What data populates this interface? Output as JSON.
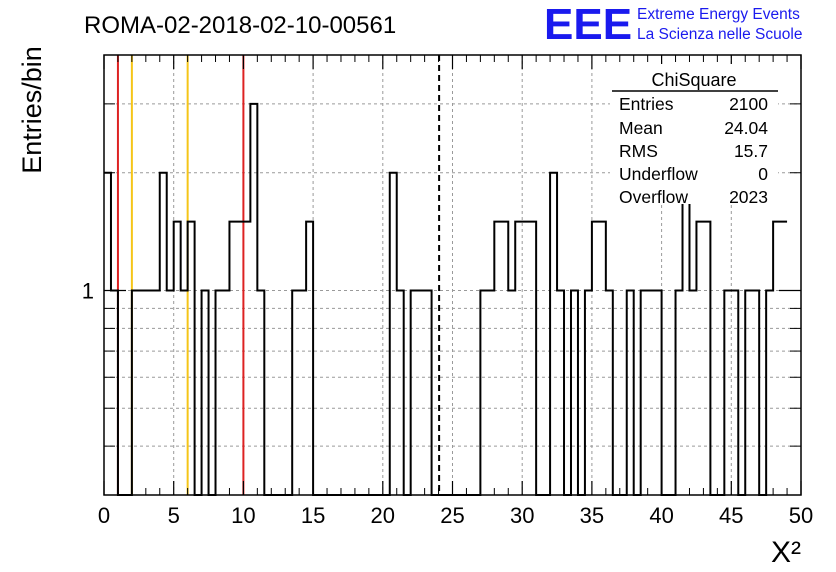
{
  "chart_data": {
    "type": "bar",
    "title": "ROMA-02-2018-02-10-00561",
    "xlabel": "X²",
    "ylabel": "Entries/bin",
    "xlim": [
      0,
      50
    ],
    "y_scale": "log",
    "ylim": [
      0.3,
      4.0
    ],
    "x_ticks": [
      "0",
      "5",
      "10",
      "15",
      "20",
      "25",
      "30",
      "35",
      "40",
      "45",
      "50"
    ],
    "y_ticks": [
      "1"
    ],
    "grid": true,
    "bin_width": 0.5,
    "values": [
      2,
      1,
      0,
      0,
      1,
      1,
      1,
      1,
      2,
      1,
      1.5,
      1,
      1.5,
      0,
      1,
      0,
      1,
      1,
      1.5,
      1.5,
      1.5,
      3,
      1,
      0,
      0,
      0,
      0,
      1,
      1,
      1.5,
      0,
      0,
      0,
      0,
      0,
      0,
      0,
      0,
      0,
      0,
      0,
      2,
      1,
      0,
      1,
      1,
      1,
      0,
      0,
      0,
      0,
      0,
      0,
      0,
      1,
      1,
      1.5,
      1.5,
      1,
      1.5,
      1.5,
      1.5,
      0,
      0,
      2,
      1,
      0,
      1,
      0,
      1,
      1.5,
      1.5,
      1,
      0,
      0,
      1,
      0,
      1,
      1,
      1,
      0,
      0,
      1,
      2,
      1,
      1.5,
      1.5,
      0,
      0,
      1,
      1,
      0,
      1,
      1,
      0,
      1,
      1.5,
      1.5
    ],
    "reference_lines": [
      {
        "x": 1,
        "color": "#dd2222"
      },
      {
        "x": 2,
        "color": "#f5c518"
      },
      {
        "x": 6,
        "color": "#f5c518"
      },
      {
        "x": 10,
        "color": "#dd2222"
      },
      {
        "x": 24.04,
        "color": "#000000",
        "style": "dashed"
      }
    ]
  },
  "stats": {
    "title": "ChiSquare",
    "rows": [
      {
        "label": "Entries",
        "value": "2100"
      },
      {
        "label": "Mean",
        "value": "24.04"
      },
      {
        "label": "RMS",
        "value": "15.7"
      },
      {
        "label": "Underflow",
        "value": "0"
      },
      {
        "label": "Overflow",
        "value": "2023"
      }
    ]
  },
  "logo": {
    "mark": "EEE",
    "line1": "Extreme Energy Events",
    "line2": "La Scienza nelle Scuole",
    "color": "#1a1aee"
  }
}
